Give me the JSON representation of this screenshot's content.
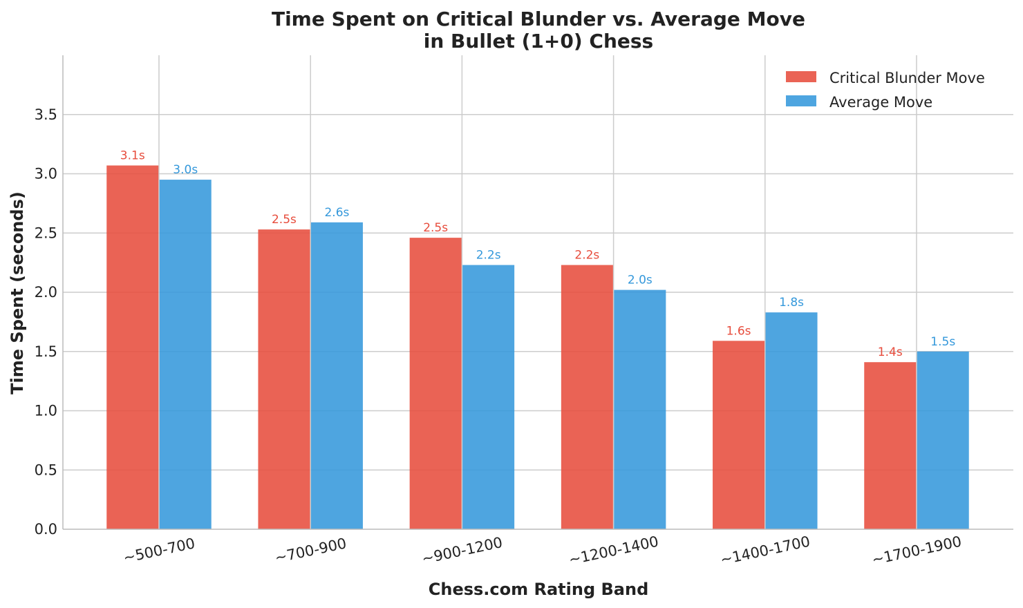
{
  "chart_data": {
    "type": "bar",
    "title": "Time Spent on Critical Blunder vs. Average Move",
    "subtitle": "in Bullet (1+0) Chess",
    "xlabel": "Chess.com Rating Band",
    "ylabel": "Time Spent (seconds)",
    "categories": [
      "~500-700",
      "~700-900",
      "~900-1200",
      "~1200-1400",
      "~1400-1700",
      "~1700-1900"
    ],
    "series": [
      {
        "name": "Critical Blunder Move",
        "color": "#e74c3c",
        "values": [
          3.07,
          2.53,
          2.46,
          2.23,
          1.59,
          1.41
        ],
        "labels": [
          "3.1s",
          "2.5s",
          "2.5s",
          "2.2s",
          "1.6s",
          "1.4s"
        ]
      },
      {
        "name": "Average Move",
        "color": "#3498db",
        "values": [
          2.95,
          2.59,
          2.23,
          2.02,
          1.83,
          1.5
        ],
        "labels": [
          "3.0s",
          "2.6s",
          "2.2s",
          "2.0s",
          "1.8s",
          "1.5s"
        ]
      }
    ],
    "ylim": [
      0,
      4.0
    ],
    "yticks": [
      "0.0",
      "0.5",
      "1.0",
      "1.5",
      "2.0",
      "2.5",
      "3.0",
      "3.5"
    ],
    "grid": true,
    "legend": "top-right"
  }
}
